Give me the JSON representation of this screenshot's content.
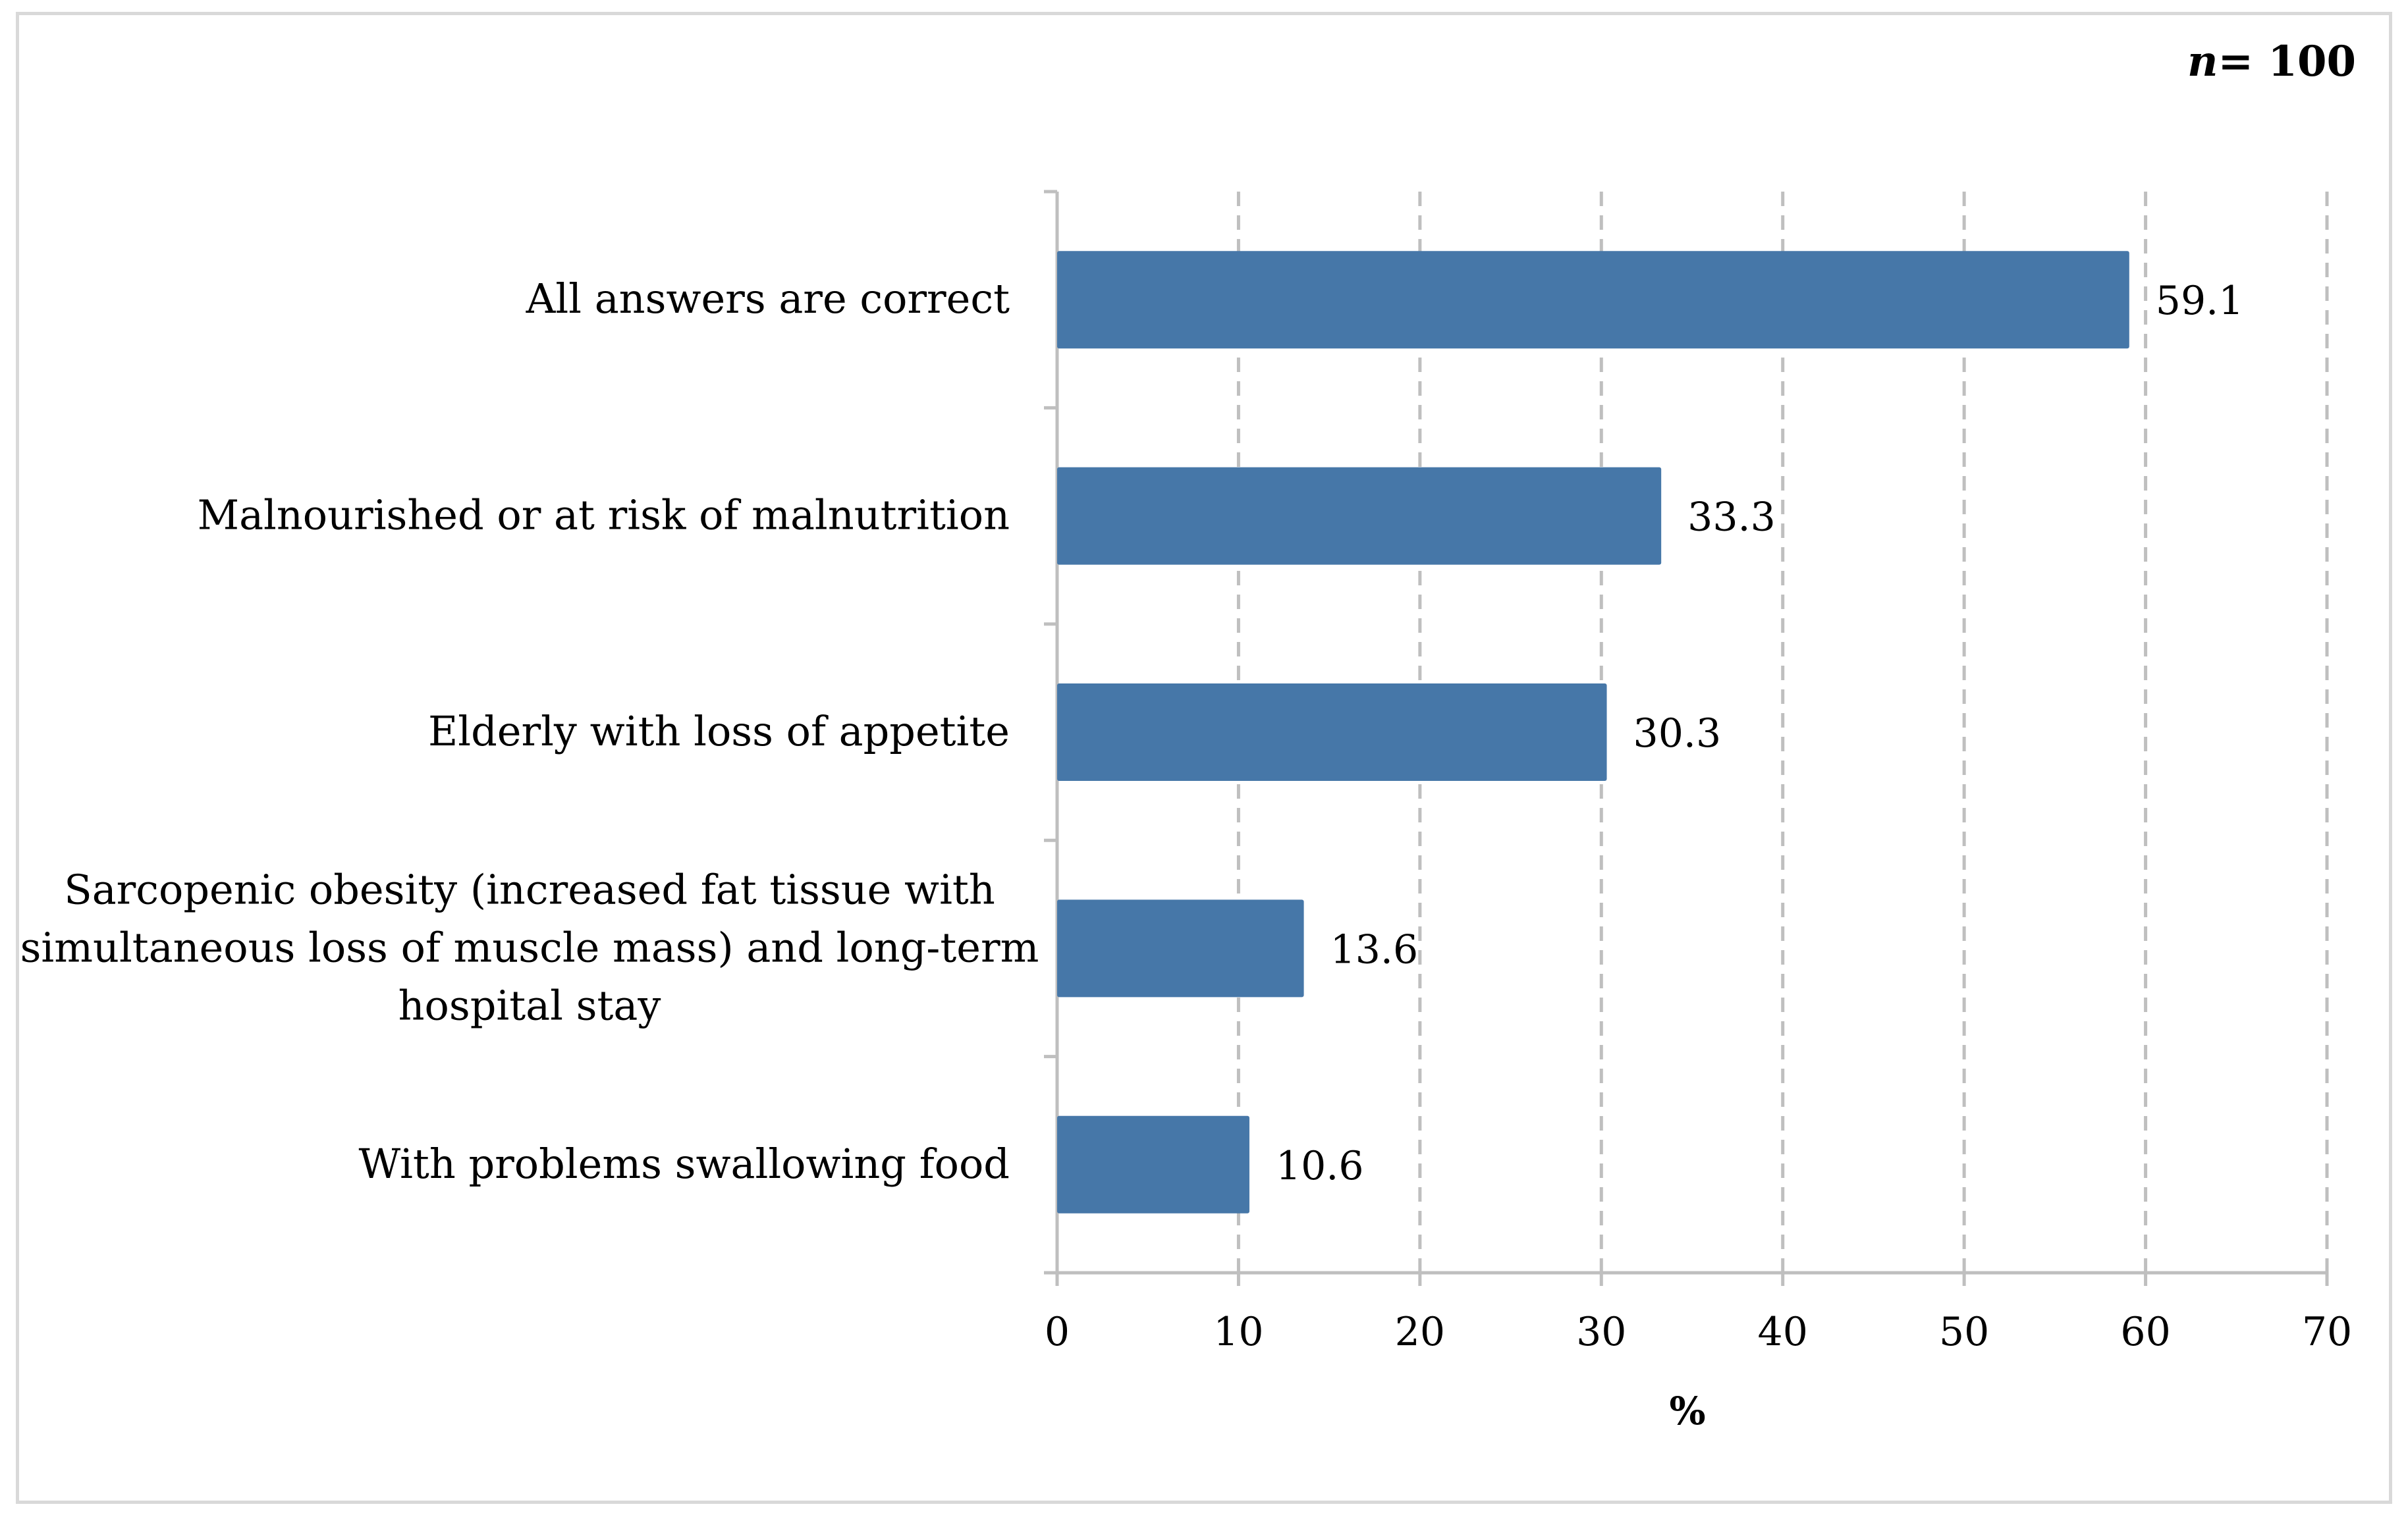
{
  "chart_data": {
    "type": "bar",
    "orientation": "horizontal",
    "annotation": {
      "n_symbol": "n",
      "n_value": "= 100"
    },
    "categories": [
      "All answers are correct",
      "Malnourished or at risk of malnutrition",
      "Elderly with loss of appetite",
      "Sarcopenic obesity (increased fat tissue with simultaneous loss of muscle mass) and long-term hospital stay",
      "With problems swallowing food"
    ],
    "category_lines": [
      [
        "All answers are correct"
      ],
      [
        "Malnourished or at risk of malnutrition"
      ],
      [
        "Elderly with loss of appetite"
      ],
      [
        "Sarcopenic obesity (increased fat tissue with",
        "simultaneous loss of muscle mass) and long-term",
        "hospital stay"
      ],
      [
        "With problems swallowing food"
      ]
    ],
    "values": [
      59.1,
      33.3,
      30.3,
      13.6,
      10.6
    ],
    "data_labels": [
      "59.1",
      "33.3",
      "30.3",
      "13.6",
      "10.6"
    ],
    "xlabel": "%",
    "ylabel": "",
    "xlim": [
      0,
      70
    ],
    "xticks": [
      0,
      10,
      20,
      30,
      40,
      50,
      60,
      70
    ],
    "grid": "vertical dashed",
    "bar_color": "#4677a8",
    "axis_color": "#bfbfbf",
    "grid_color": "#bfbfbf",
    "text_color": "#000000"
  }
}
